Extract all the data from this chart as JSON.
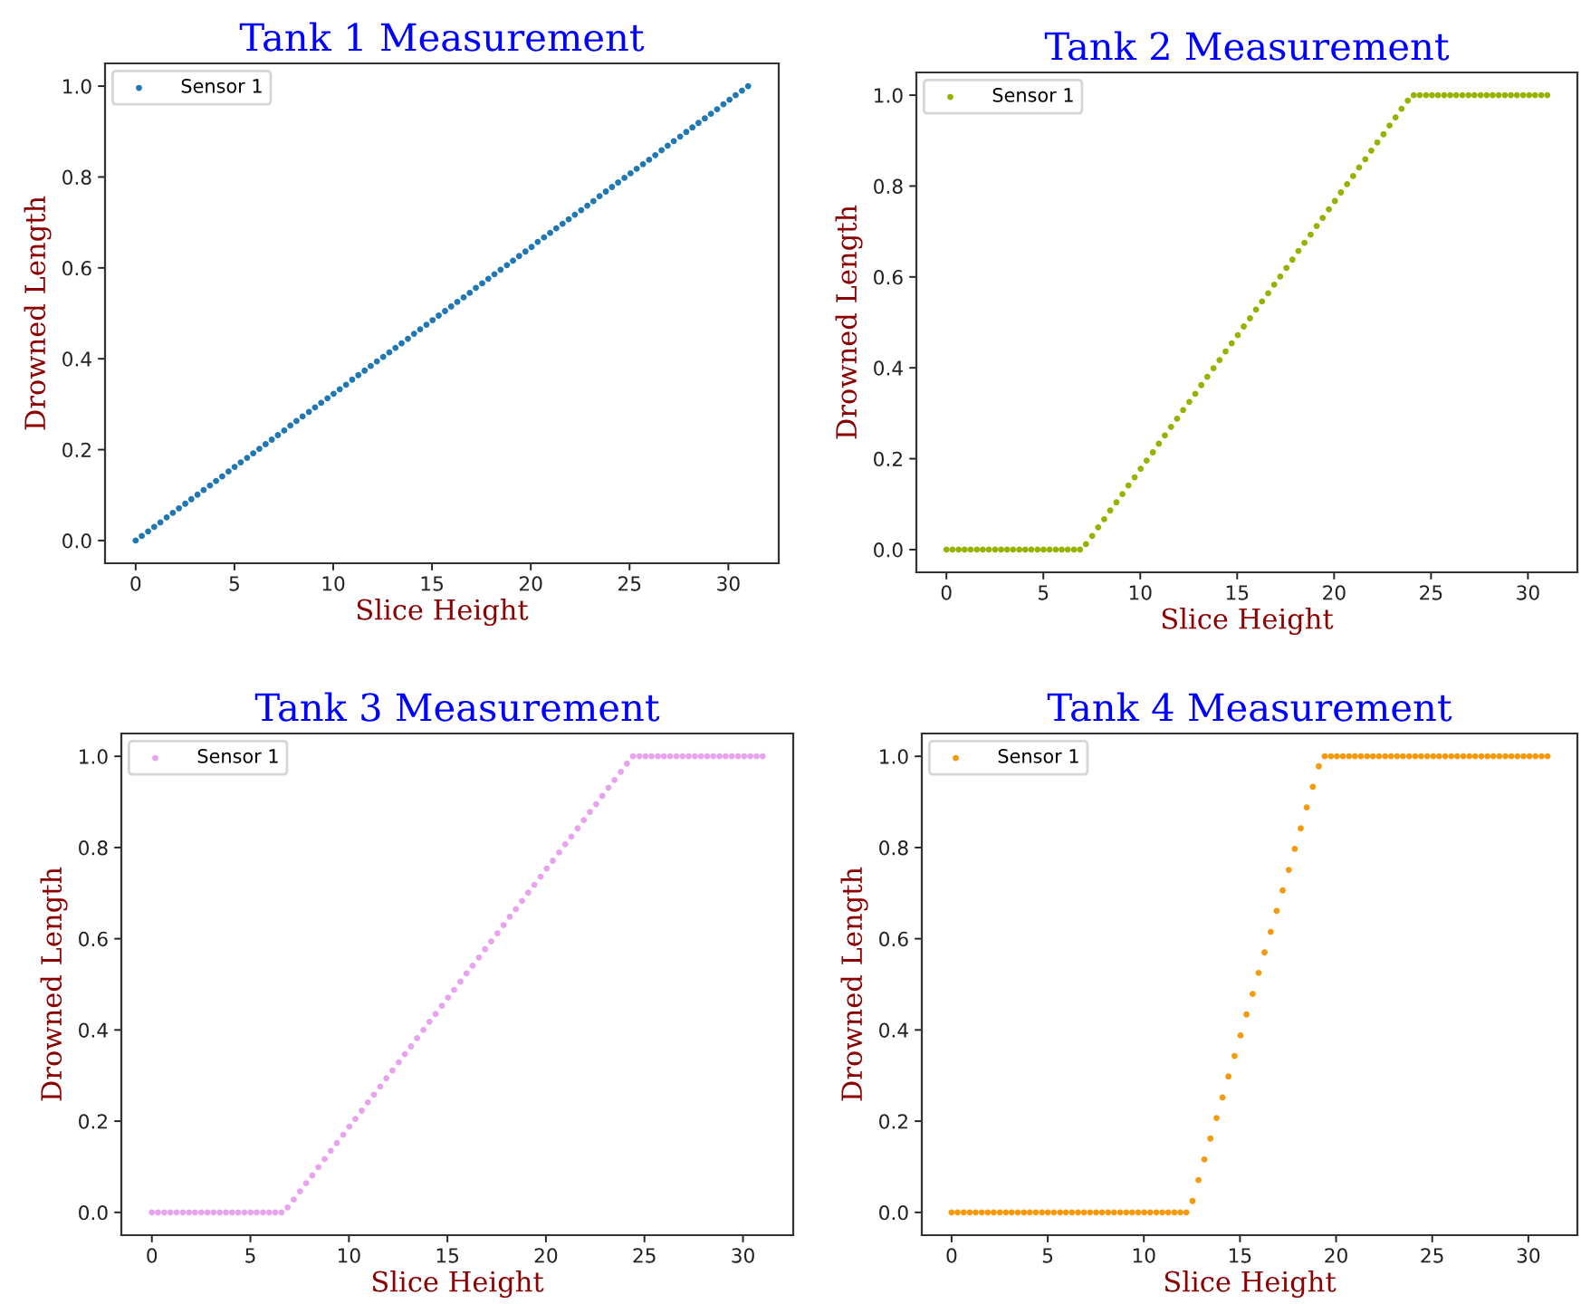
{
  "chart_data": [
    {
      "type": "scatter",
      "title": "Tank 1 Measurement",
      "xlabel": "Slice Height",
      "ylabel": "Drowned Length",
      "marker": "circle",
      "legend": "top left",
      "x": [
        0.0,
        0.31,
        0.63,
        0.94,
        1.25,
        1.57,
        1.88,
        2.19,
        2.51,
        2.82,
        3.13,
        3.44,
        3.76,
        4.07,
        4.38,
        4.7,
        5.01,
        5.32,
        5.64,
        5.95,
        6.26,
        6.58,
        6.89,
        7.2,
        7.52,
        7.83,
        8.14,
        8.45,
        8.77,
        9.08,
        9.39,
        9.71,
        10.02,
        10.33,
        10.65,
        10.96,
        11.27,
        11.59,
        11.9,
        12.21,
        12.53,
        12.84,
        13.15,
        13.46,
        13.78,
        14.09,
        14.4,
        14.72,
        15.03,
        15.34,
        15.66,
        15.97,
        16.28,
        16.6,
        16.91,
        17.22,
        17.54,
        17.85,
        18.16,
        18.47,
        18.79,
        19.1,
        19.41,
        19.73,
        20.04,
        20.35,
        20.67,
        20.98,
        21.29,
        21.61,
        21.92,
        22.23,
        22.55,
        22.86,
        23.17,
        23.48,
        23.8,
        24.11,
        24.42,
        24.74,
        25.05,
        25.36,
        25.68,
        25.99,
        26.3,
        26.62,
        26.93,
        27.24,
        27.56,
        27.87,
        28.18,
        28.49,
        28.81,
        29.12,
        29.43,
        29.75,
        30.06,
        30.37,
        30.69,
        31.0
      ],
      "series": [
        {
          "name": "Sensor 1",
          "color": "#1f77b4",
          "values": [
            0,
            0.01,
            0.02,
            0.03,
            0.04,
            0.051,
            0.061,
            0.071,
            0.081,
            0.091,
            0.101,
            0.111,
            0.121,
            0.131,
            0.141,
            0.152,
            0.162,
            0.172,
            0.182,
            0.192,
            0.202,
            0.212,
            0.222,
            0.232,
            0.242,
            0.253,
            0.263,
            0.273,
            0.283,
            0.293,
            0.303,
            0.313,
            0.323,
            0.333,
            0.343,
            0.354,
            0.364,
            0.374,
            0.384,
            0.394,
            0.404,
            0.414,
            0.424,
            0.434,
            0.444,
            0.455,
            0.465,
            0.475,
            0.485,
            0.495,
            0.505,
            0.515,
            0.525,
            0.535,
            0.545,
            0.556,
            0.566,
            0.576,
            0.586,
            0.596,
            0.606,
            0.616,
            0.626,
            0.636,
            0.646,
            0.657,
            0.667,
            0.677,
            0.687,
            0.697,
            0.707,
            0.717,
            0.727,
            0.737,
            0.747,
            0.758,
            0.768,
            0.778,
            0.788,
            0.798,
            0.808,
            0.818,
            0.828,
            0.838,
            0.848,
            0.859,
            0.869,
            0.879,
            0.889,
            0.899,
            0.909,
            0.919,
            0.929,
            0.939,
            0.949,
            0.96,
            0.97,
            0.98,
            0.99,
            1.0
          ]
        }
      ],
      "xlim": [
        -1.55,
        32.55
      ],
      "ylim": [
        -0.05,
        1.05
      ],
      "xticks": [
        0,
        5,
        10,
        15,
        20,
        25,
        30
      ],
      "yticks": [
        {
          "value": 0,
          "label": "0.0"
        },
        {
          "value": 0.2,
          "label": "0.2"
        },
        {
          "value": 0.4,
          "label": "0.4"
        },
        {
          "value": 0.6,
          "label": "0.6"
        },
        {
          "value": 0.8,
          "label": "0.8"
        },
        {
          "value": 1,
          "label": "1.0"
        }
      ]
    },
    {
      "type": "scatter",
      "title": "Tank 2 Measurement",
      "xlabel": "Slice Height",
      "ylabel": "Drowned Length",
      "marker": "circle",
      "legend": "top left",
      "x": [
        0.0,
        0.31,
        0.63,
        0.94,
        1.25,
        1.57,
        1.88,
        2.19,
        2.51,
        2.82,
        3.13,
        3.44,
        3.76,
        4.07,
        4.38,
        4.7,
        5.01,
        5.32,
        5.64,
        5.95,
        6.26,
        6.58,
        6.89,
        7.2,
        7.52,
        7.83,
        8.14,
        8.45,
        8.77,
        9.08,
        9.39,
        9.71,
        10.02,
        10.33,
        10.65,
        10.96,
        11.27,
        11.59,
        11.9,
        12.21,
        12.53,
        12.84,
        13.15,
        13.46,
        13.78,
        14.09,
        14.4,
        14.72,
        15.03,
        15.34,
        15.66,
        15.97,
        16.28,
        16.6,
        16.91,
        17.22,
        17.54,
        17.85,
        18.16,
        18.47,
        18.79,
        19.1,
        19.41,
        19.73,
        20.04,
        20.35,
        20.67,
        20.98,
        21.29,
        21.61,
        21.92,
        22.23,
        22.55,
        22.86,
        23.17,
        23.48,
        23.8,
        24.11,
        24.42,
        24.74,
        25.05,
        25.36,
        25.68,
        25.99,
        26.3,
        26.62,
        26.93,
        27.24,
        27.56,
        27.87,
        28.18,
        28.49,
        28.81,
        29.12,
        29.43,
        29.75,
        30.06,
        30.37,
        30.69,
        31.0
      ],
      "series": [
        {
          "name": "Sensor 1",
          "color": "#95b300",
          "values": [
            0,
            0,
            0,
            0,
            0,
            0,
            0,
            0,
            0,
            0,
            0,
            0,
            0,
            0,
            0,
            0,
            0,
            0,
            0,
            0,
            0,
            0,
            0,
            0.012,
            0.03,
            0.049,
            0.067,
            0.086,
            0.104,
            0.122,
            0.141,
            0.159,
            0.178,
            0.196,
            0.214,
            0.233,
            0.251,
            0.27,
            0.288,
            0.307,
            0.325,
            0.343,
            0.362,
            0.38,
            0.399,
            0.417,
            0.436,
            0.454,
            0.472,
            0.491,
            0.509,
            0.528,
            0.546,
            0.564,
            0.583,
            0.601,
            0.62,
            0.638,
            0.657,
            0.675,
            0.693,
            0.712,
            0.73,
            0.749,
            0.767,
            0.786,
            0.804,
            0.822,
            0.841,
            0.859,
            0.878,
            0.896,
            0.914,
            0.933,
            0.951,
            0.97,
            0.988,
            1,
            1,
            1,
            1,
            1,
            1,
            1,
            1,
            1,
            1,
            1,
            1,
            1,
            1,
            1,
            1,
            1,
            1,
            1,
            1,
            1,
            1,
            1
          ]
        }
      ],
      "xlim": [
        -1.55,
        32.55
      ],
      "ylim": [
        -0.05,
        1.05
      ],
      "xticks": [
        0,
        5,
        10,
        15,
        20,
        25,
        30
      ],
      "yticks": [
        {
          "value": 0,
          "label": "0.0"
        },
        {
          "value": 0.2,
          "label": "0.2"
        },
        {
          "value": 0.4,
          "label": "0.4"
        },
        {
          "value": 0.6,
          "label": "0.6"
        },
        {
          "value": 0.8,
          "label": "0.8"
        },
        {
          "value": 1,
          "label": "1.0"
        }
      ]
    },
    {
      "type": "scatter",
      "title": "Tank 3 Measurement",
      "xlabel": "Slice Height",
      "ylabel": "Drowned Length",
      "marker": "circle",
      "legend": "top left",
      "x": [
        0.0,
        0.31,
        0.63,
        0.94,
        1.25,
        1.57,
        1.88,
        2.19,
        2.51,
        2.82,
        3.13,
        3.44,
        3.76,
        4.07,
        4.38,
        4.7,
        5.01,
        5.32,
        5.64,
        5.95,
        6.26,
        6.58,
        6.89,
        7.2,
        7.52,
        7.83,
        8.14,
        8.45,
        8.77,
        9.08,
        9.39,
        9.71,
        10.02,
        10.33,
        10.65,
        10.96,
        11.27,
        11.59,
        11.9,
        12.21,
        12.53,
        12.84,
        13.15,
        13.46,
        13.78,
        14.09,
        14.4,
        14.72,
        15.03,
        15.34,
        15.66,
        15.97,
        16.28,
        16.6,
        16.91,
        17.22,
        17.54,
        17.85,
        18.16,
        18.47,
        18.79,
        19.1,
        19.41,
        19.73,
        20.04,
        20.35,
        20.67,
        20.98,
        21.29,
        21.61,
        21.92,
        22.23,
        22.55,
        22.86,
        23.17,
        23.48,
        23.8,
        24.11,
        24.42,
        24.74,
        25.05,
        25.36,
        25.68,
        25.99,
        26.3,
        26.62,
        26.93,
        27.24,
        27.56,
        27.87,
        28.18,
        28.49,
        28.81,
        29.12,
        29.43,
        29.75,
        30.06,
        30.37,
        30.69,
        31.0
      ],
      "series": [
        {
          "name": "Sensor 1",
          "color": "#e7a3ee",
          "values": [
            0,
            0,
            0,
            0,
            0,
            0,
            0,
            0,
            0,
            0,
            0,
            0,
            0,
            0,
            0,
            0,
            0,
            0,
            0,
            0,
            0,
            0,
            0.011,
            0.028,
            0.046,
            0.064,
            0.081,
            0.099,
            0.117,
            0.135,
            0.152,
            0.17,
            0.188,
            0.205,
            0.223,
            0.241,
            0.258,
            0.276,
            0.294,
            0.311,
            0.329,
            0.347,
            0.364,
            0.382,
            0.4,
            0.418,
            0.435,
            0.453,
            0.471,
            0.488,
            0.506,
            0.524,
            0.541,
            0.559,
            0.577,
            0.594,
            0.612,
            0.63,
            0.648,
            0.665,
            0.683,
            0.701,
            0.718,
            0.736,
            0.754,
            0.771,
            0.789,
            0.807,
            0.824,
            0.842,
            0.86,
            0.878,
            0.895,
            0.913,
            0.931,
            0.948,
            0.966,
            0.984,
            1,
            1,
            1,
            1,
            1,
            1,
            1,
            1,
            1,
            1,
            1,
            1,
            1,
            1,
            1,
            1,
            1,
            1,
            1,
            1,
            1,
            1
          ]
        }
      ],
      "xlim": [
        -1.55,
        32.55
      ],
      "ylim": [
        -0.05,
        1.05
      ],
      "xticks": [
        0,
        5,
        10,
        15,
        20,
        25,
        30
      ],
      "yticks": [
        {
          "value": 0,
          "label": "0.0"
        },
        {
          "value": 0.2,
          "label": "0.2"
        },
        {
          "value": 0.4,
          "label": "0.4"
        },
        {
          "value": 0.6,
          "label": "0.6"
        },
        {
          "value": 0.8,
          "label": "0.8"
        },
        {
          "value": 1,
          "label": "1.0"
        }
      ]
    },
    {
      "type": "scatter",
      "title": "Tank 4 Measurement",
      "xlabel": "Slice Height",
      "ylabel": "Drowned Length",
      "marker": "circle",
      "legend": "top left",
      "x": [
        0.0,
        0.31,
        0.63,
        0.94,
        1.25,
        1.57,
        1.88,
        2.19,
        2.51,
        2.82,
        3.13,
        3.44,
        3.76,
        4.07,
        4.38,
        4.7,
        5.01,
        5.32,
        5.64,
        5.95,
        6.26,
        6.58,
        6.89,
        7.2,
        7.52,
        7.83,
        8.14,
        8.45,
        8.77,
        9.08,
        9.39,
        9.71,
        10.02,
        10.33,
        10.65,
        10.96,
        11.27,
        11.59,
        11.9,
        12.21,
        12.53,
        12.84,
        13.15,
        13.46,
        13.78,
        14.09,
        14.4,
        14.72,
        15.03,
        15.34,
        15.66,
        15.97,
        16.28,
        16.6,
        16.91,
        17.22,
        17.54,
        17.85,
        18.16,
        18.47,
        18.79,
        19.1,
        19.41,
        19.73,
        20.04,
        20.35,
        20.67,
        20.98,
        21.29,
        21.61,
        21.92,
        22.23,
        22.55,
        22.86,
        23.17,
        23.48,
        23.8,
        24.11,
        24.42,
        24.74,
        25.05,
        25.36,
        25.68,
        25.99,
        26.3,
        26.62,
        26.93,
        27.24,
        27.56,
        27.87,
        28.18,
        28.49,
        28.81,
        29.12,
        29.43,
        29.75,
        30.06,
        30.37,
        30.69,
        31.0
      ],
      "series": [
        {
          "name": "Sensor 1",
          "color": "#f59a0c",
          "values": [
            0,
            0,
            0,
            0,
            0,
            0,
            0,
            0,
            0,
            0,
            0,
            0,
            0,
            0,
            0,
            0,
            0,
            0,
            0,
            0,
            0,
            0,
            0,
            0,
            0,
            0,
            0,
            0,
            0,
            0,
            0,
            0,
            0,
            0,
            0,
            0,
            0,
            0,
            0,
            0,
            0.025,
            0.071,
            0.116,
            0.162,
            0.207,
            0.252,
            0.298,
            0.343,
            0.388,
            0.434,
            0.479,
            0.525,
            0.57,
            0.615,
            0.661,
            0.706,
            0.751,
            0.797,
            0.842,
            0.888,
            0.933,
            0.978,
            1,
            1,
            1,
            1,
            1,
            1,
            1,
            1,
            1,
            1,
            1,
            1,
            1,
            1,
            1,
            1,
            1,
            1,
            1,
            1,
            1,
            1,
            1,
            1,
            1,
            1,
            1,
            1,
            1,
            1,
            1,
            1,
            1,
            1,
            1,
            1,
            1,
            1
          ]
        }
      ],
      "xlim": [
        -1.55,
        32.55
      ],
      "ylim": [
        -0.05,
        1.05
      ],
      "xticks": [
        0,
        5,
        10,
        15,
        20,
        25,
        30
      ],
      "yticks": [
        {
          "value": 0,
          "label": "0.0"
        },
        {
          "value": 0.2,
          "label": "0.2"
        },
        {
          "value": 0.4,
          "label": "0.4"
        },
        {
          "value": 0.6,
          "label": "0.6"
        },
        {
          "value": 0.8,
          "label": "0.8"
        },
        {
          "value": 1,
          "label": "1.0"
        }
      ]
    }
  ]
}
